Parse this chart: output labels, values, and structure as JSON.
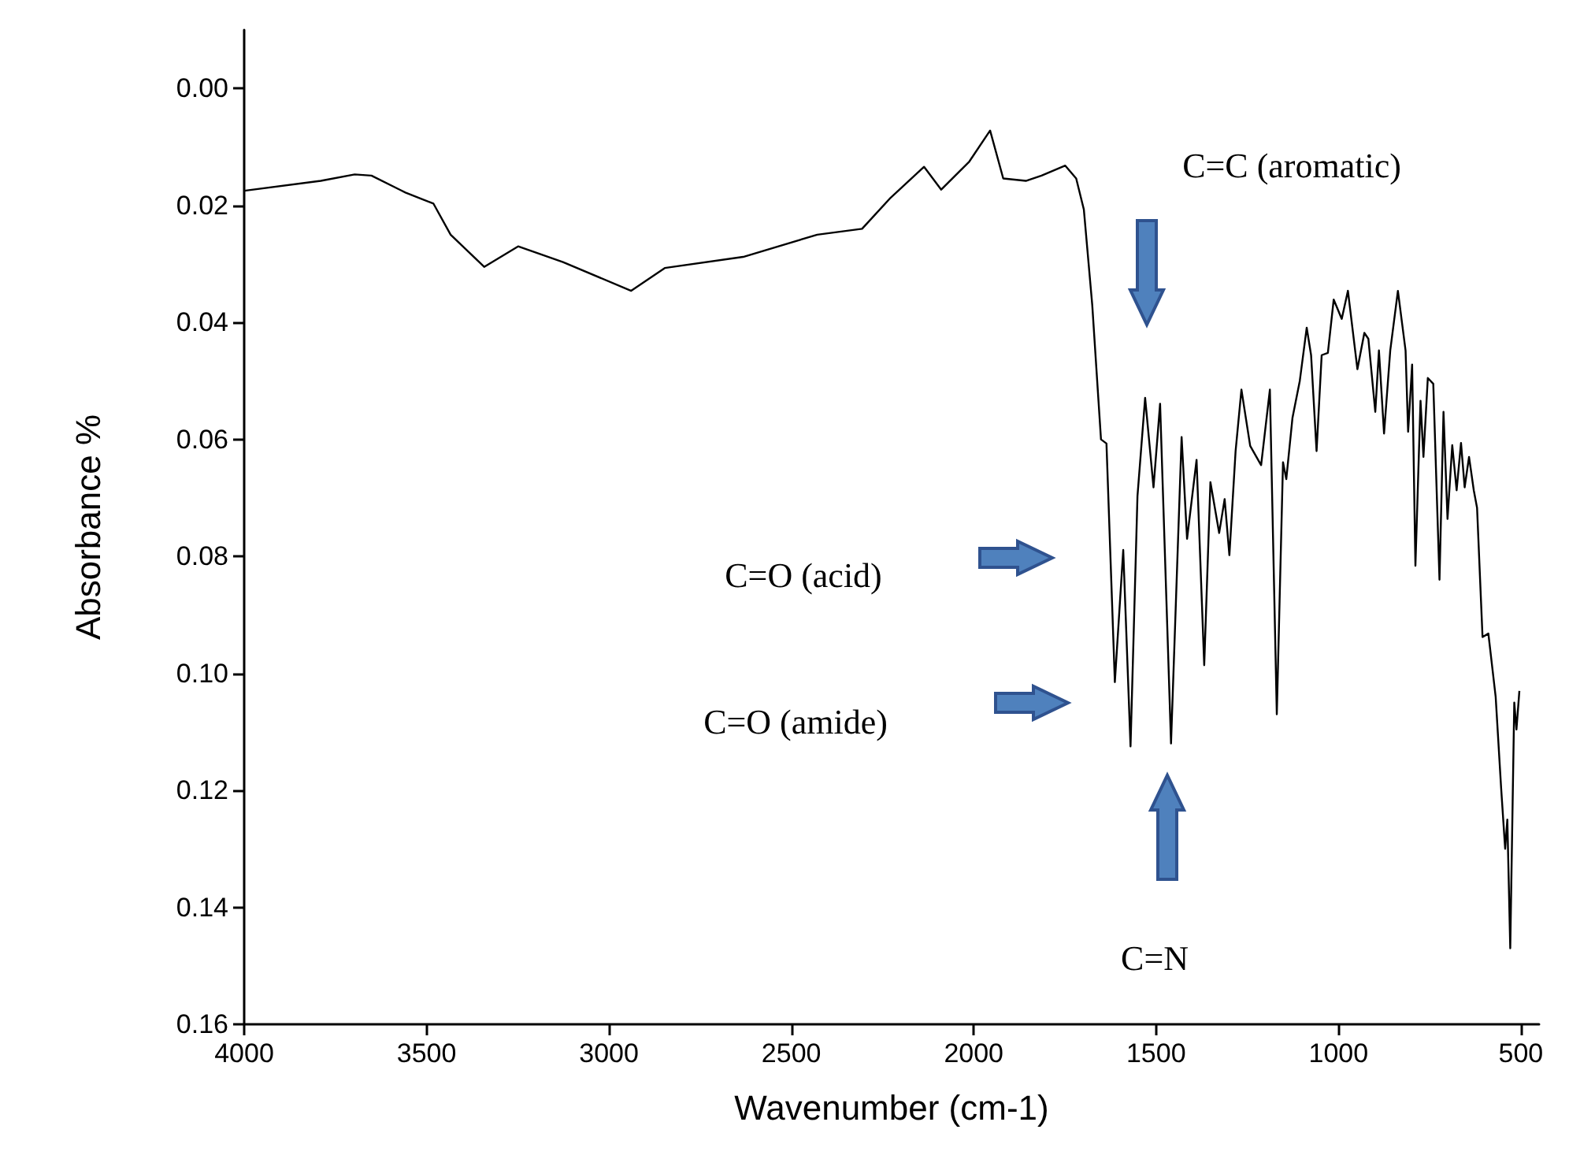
{
  "chart_data": {
    "type": "line",
    "xlabel": "Wavenumber (cm-1)",
    "ylabel": "Absorbance %",
    "xlim": [
      4000,
      450
    ],
    "xticks": [
      4000,
      3500,
      3000,
      2500,
      2000,
      1500,
      1000,
      500
    ],
    "ylim": [
      0.16,
      -0.01
    ],
    "yticks": [
      {
        "value": 0,
        "label": "0.00"
      },
      {
        "value": 0.02,
        "label": "0.02"
      },
      {
        "value": 0.04,
        "label": "0.04"
      },
      {
        "value": 0.06,
        "label": "0.06"
      },
      {
        "value": 0.08,
        "label": "0.08"
      },
      {
        "value": 0.1,
        "label": "0.10"
      },
      {
        "value": 0.12,
        "label": "0.12"
      },
      {
        "value": 0.14,
        "label": "0.14"
      },
      {
        "value": 0.16,
        "label": "0.16"
      }
    ],
    "grid": false,
    "annotations": [
      "C=C (aromatic)",
      "C=O (acid)",
      "C=O (amide)",
      "C=N"
    ],
    "series": [
      {
        "color": "#000000",
        "x": [
          4000,
          3790,
          3697,
          3651,
          3558,
          3481,
          3434,
          3342,
          3249,
          3126,
          2939,
          2847,
          2632,
          2429,
          2306,
          2228,
          2136,
          2089,
          2012,
          1955,
          1919,
          1857,
          1814,
          1749,
          1719,
          1698,
          1675,
          1651,
          1636,
          1613,
          1590,
          1570,
          1551,
          1530,
          1507,
          1489,
          1459,
          1430,
          1415,
          1389,
          1368,
          1351,
          1327,
          1312,
          1299,
          1282,
          1266,
          1242,
          1212,
          1188,
          1169,
          1152,
          1143,
          1126,
          1106,
          1087,
          1075,
          1060,
          1046,
          1029,
          1013,
          991,
          974,
          948,
          929,
          918,
          899,
          889,
          875,
          858,
          837,
          816,
          809,
          798,
          789,
          775,
          767,
          755,
          740,
          723,
          712,
          701,
          688,
          676,
          664,
          654,
          642,
          629,
          620,
          605,
          589,
          569,
          554,
          543,
          537,
          529,
          518,
          512,
          504
        ],
        "values": [
          0.0175,
          0.0158,
          0.0147,
          0.0149,
          0.0178,
          0.0197,
          0.025,
          0.0305,
          0.027,
          0.0297,
          0.0346,
          0.0307,
          0.0288,
          0.025,
          0.024,
          0.0187,
          0.0134,
          0.0173,
          0.0125,
          0.0072,
          0.0154,
          0.0158,
          0.0149,
          0.0132,
          0.0154,
          0.0207,
          0.037,
          0.06,
          0.0607,
          0.1015,
          0.0789,
          0.1125,
          0.0697,
          0.0529,
          0.0682,
          0.0539,
          0.112,
          0.0596,
          0.077,
          0.0635,
          0.0986,
          0.0673,
          0.076,
          0.0702,
          0.0798,
          0.062,
          0.0515,
          0.0611,
          0.0644,
          0.0515,
          0.107,
          0.0639,
          0.0668,
          0.0563,
          0.05,
          0.0409,
          0.0456,
          0.062,
          0.0456,
          0.0452,
          0.0361,
          0.0394,
          0.0346,
          0.048,
          0.0418,
          0.0428,
          0.0553,
          0.0448,
          0.059,
          0.0448,
          0.0346,
          0.0448,
          0.0587,
          0.0472,
          0.0816,
          0.0534,
          0.063,
          0.0495,
          0.0505,
          0.084,
          0.0553,
          0.0736,
          0.061,
          0.0687,
          0.0606,
          0.0682,
          0.063,
          0.0687,
          0.0717,
          0.0938,
          0.0932,
          0.104,
          0.1196,
          0.13,
          0.125,
          0.147,
          0.105,
          0.1096,
          0.103
        ]
      }
    ]
  }
}
